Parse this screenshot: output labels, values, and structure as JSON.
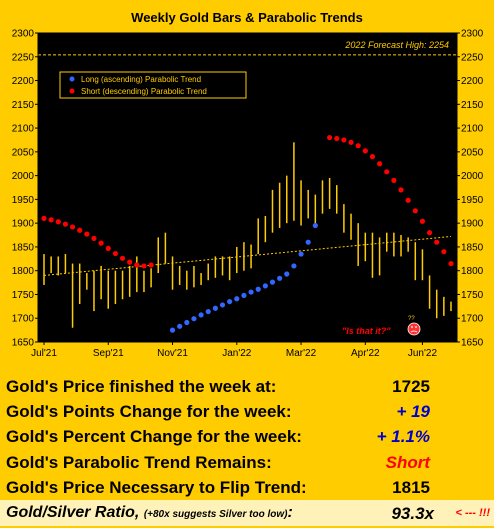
{
  "chart_data": {
    "type": "bar",
    "title": "Weekly Gold Bars & Parabolic Trends",
    "ylim": [
      1650,
      2300
    ],
    "yticks": [
      1650,
      1700,
      1750,
      1800,
      1850,
      1900,
      1950,
      2000,
      2050,
      2100,
      2150,
      2200,
      2250,
      2300
    ],
    "xtick_labels": [
      "Jul'21",
      "Sep'21",
      "Nov'21",
      "Jan'22",
      "Mar'22",
      "Apr'22",
      "Jun'22"
    ],
    "xtick_weeks": [
      0,
      9,
      18,
      27,
      36,
      45,
      53
    ],
    "forecast_label": "2022 Forecast High: 2254",
    "forecast_value": 2254,
    "legend": {
      "long": "Long (ascending) Parabolic Trend",
      "short": "Short (descending) Parabolic Trend"
    },
    "annotation": "\"Is that it?\"",
    "annotation_mark": "??",
    "colors": {
      "bars": "#FFCC00",
      "long": "#3366FF",
      "short": "#FF0000",
      "trendline": "#FFCC00",
      "background": "#000000",
      "frame": "#FFCC00"
    },
    "weekly_bars": [
      [
        1770,
        1835
      ],
      [
        1795,
        1830
      ],
      [
        1790,
        1830
      ],
      [
        1795,
        1835
      ],
      [
        1680,
        1815
      ],
      [
        1730,
        1815
      ],
      [
        1760,
        1795
      ],
      [
        1715,
        1800
      ],
      [
        1740,
        1810
      ],
      [
        1720,
        1800
      ],
      [
        1730,
        1800
      ],
      [
        1740,
        1800
      ],
      [
        1745,
        1810
      ],
      [
        1755,
        1830
      ],
      [
        1755,
        1800
      ],
      [
        1765,
        1805
      ],
      [
        1795,
        1870
      ],
      [
        1815,
        1880
      ],
      [
        1760,
        1830
      ],
      [
        1770,
        1810
      ],
      [
        1760,
        1800
      ],
      [
        1765,
        1810
      ],
      [
        1770,
        1795
      ],
      [
        1780,
        1815
      ],
      [
        1785,
        1830
      ],
      [
        1790,
        1830
      ],
      [
        1780,
        1830
      ],
      [
        1795,
        1850
      ],
      [
        1800,
        1860
      ],
      [
        1805,
        1855
      ],
      [
        1835,
        1910
      ],
      [
        1860,
        1915
      ],
      [
        1880,
        1970
      ],
      [
        1890,
        1985
      ],
      [
        1900,
        2000
      ],
      [
        1905,
        2070
      ],
      [
        1895,
        1990
      ],
      [
        1910,
        1970
      ],
      [
        1895,
        1960
      ],
      [
        1920,
        1990
      ],
      [
        1930,
        1995
      ],
      [
        1920,
        1980
      ],
      [
        1880,
        1940
      ],
      [
        1865,
        1920
      ],
      [
        1810,
        1900
      ],
      [
        1820,
        1880
      ],
      [
        1785,
        1880
      ],
      [
        1790,
        1870
      ],
      [
        1840,
        1880
      ],
      [
        1830,
        1880
      ],
      [
        1830,
        1875
      ],
      [
        1840,
        1870
      ],
      [
        1780,
        1860
      ],
      [
        1780,
        1845
      ],
      [
        1720,
        1790
      ],
      [
        1700,
        1760
      ],
      [
        1705,
        1745
      ],
      [
        1715,
        1735
      ]
    ],
    "long_trend": {
      "weeks": [
        18,
        19,
        20,
        21,
        22,
        23,
        24,
        25,
        26,
        27,
        28,
        29,
        30,
        31,
        32,
        33,
        34,
        35,
        36,
        37,
        38
      ],
      "values": [
        1675,
        1683,
        1691,
        1699,
        1707,
        1714,
        1721,
        1728,
        1735,
        1741,
        1748,
        1755,
        1761,
        1768,
        1776,
        1784,
        1793,
        1810,
        1835,
        1860,
        1895
      ]
    },
    "short_trend": {
      "weeks": [
        0,
        1,
        2,
        3,
        4,
        5,
        6,
        7,
        8,
        9,
        10,
        11,
        12,
        13,
        14,
        15,
        40,
        41,
        42,
        43,
        44,
        45,
        46,
        47,
        48,
        49,
        50,
        51,
        52,
        53,
        54,
        55,
        56,
        57
      ],
      "values": [
        1910,
        1907,
        1903,
        1898,
        1892,
        1885,
        1877,
        1868,
        1858,
        1847,
        1836,
        1826,
        1818,
        1812,
        1810,
        1812,
        2080,
        2078,
        2075,
        2070,
        2063,
        2052,
        2040,
        2025,
        2008,
        1990,
        1970,
        1948,
        1926,
        1904,
        1880,
        1860,
        1840,
        1815
      ]
    },
    "trendline": {
      "from_week": 0,
      "from_value": 1790,
      "to_week": 57,
      "to_value": 1872
    }
  },
  "stats": {
    "price_label": "Gold's Price finished the week at:",
    "price_value": "1725",
    "points_label": "Gold's Points Change for the week:",
    "points_value": "+ 19",
    "percent_label": "Gold's Percent Change for the week:",
    "percent_value": "+ 1.1%",
    "trend_label": "Gold's Parabolic Trend Remains:",
    "trend_value": "Short",
    "flip_label": "Gold's Price Necessary to Flip Trend:",
    "flip_value": "1815",
    "ratio_label": "Gold/Silver Ratio,",
    "ratio_note": "(+80x suggests Silver too low)",
    "ratio_suffix": ":",
    "ratio_value": "93.3x",
    "ratio_warning": "< --- !!!"
  }
}
